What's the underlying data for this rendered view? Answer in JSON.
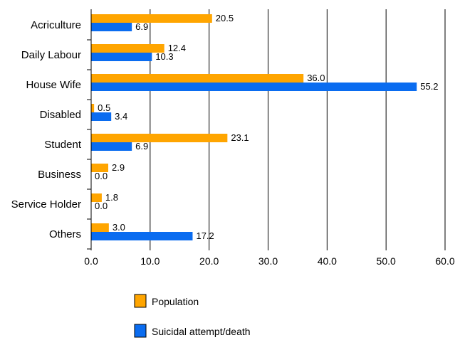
{
  "chart_data": {
    "type": "bar",
    "orientation": "horizontal",
    "categories": [
      "Acriculture",
      "Daily Labour",
      "House Wife",
      "Disabled",
      "Student",
      "Business",
      "Service Holder",
      "Others"
    ],
    "series": [
      {
        "name": "Population",
        "color": "#ffa500",
        "values": [
          20.5,
          12.4,
          36.0,
          0.5,
          23.1,
          2.9,
          1.8,
          3.0
        ],
        "labels": [
          "20.5",
          "12.4",
          "36.0",
          "0.5",
          "23.1",
          "2.9",
          "1.8",
          "3.0"
        ]
      },
      {
        "name": "Suicidal attempt/death",
        "color": "#0a6cf0",
        "values": [
          6.9,
          10.3,
          55.2,
          3.4,
          6.9,
          0.0,
          0.0,
          17.2
        ],
        "labels": [
          "6.9",
          "10.3",
          "55.2",
          "3.4",
          "6.9",
          "0.0",
          "0.0",
          "17.2"
        ]
      }
    ],
    "xlim": [
      0,
      60
    ],
    "xticks": [
      0,
      10,
      20,
      30,
      40,
      50,
      60
    ],
    "xtick_labels": [
      "0.0",
      "10.0",
      "20.0",
      "30.0",
      "40.0",
      "50.0",
      "60.0"
    ],
    "grid": "vertical",
    "legend_position": "bottom"
  }
}
